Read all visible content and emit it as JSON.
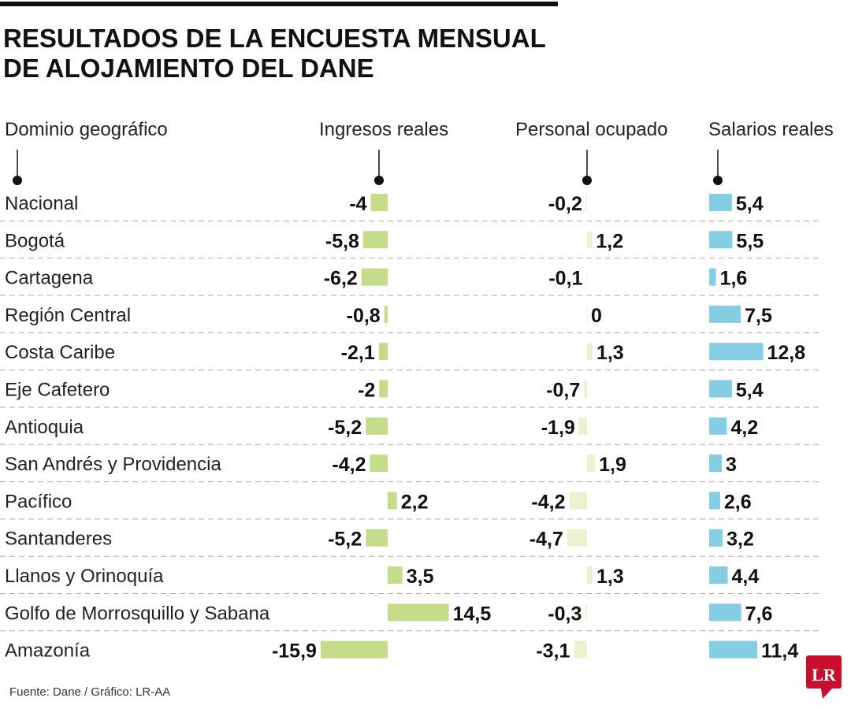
{
  "chart_data": {
    "type": "bar",
    "title": [
      "RESULTADOS DE LA ENCUESTA MENSUAL",
      "DE ALOJAMIENTO DEL DANE"
    ],
    "category_header": "Dominio geográfico",
    "categories": [
      "Nacional",
      "Bogotá",
      "Cartagena",
      "Región Central",
      "Costa Caribe",
      "Eje Cafetero",
      "Antioquia",
      "San Andrés y Providencia",
      "Pacífico",
      "Santanderes",
      "Llanos y Orinoquía",
      "Golfo de Morrosquillo y Sabana",
      "Amazonía"
    ],
    "series": [
      {
        "name": "Ingresos reales",
        "color": "#c5dc8a",
        "values": [
          -4,
          -5.8,
          -6.2,
          -0.8,
          -2.1,
          -2,
          -5.2,
          -4.2,
          2.2,
          -5.2,
          3.5,
          14.5,
          -15.9
        ]
      },
      {
        "name": "Personal ocupado",
        "color": "#ecf2d0",
        "values": [
          -0.2,
          1.2,
          -0.1,
          0,
          1.3,
          -0.7,
          -1.9,
          1.9,
          -4.2,
          -4.7,
          1.3,
          -0.3,
          -3.1
        ]
      },
      {
        "name": "Salarios reales",
        "color": "#85cde3",
        "values": [
          5.4,
          5.5,
          1.6,
          7.5,
          12.8,
          5.4,
          4.2,
          3,
          2.6,
          3.2,
          4.4,
          7.6,
          11.4
        ]
      }
    ],
    "decimal_separator": ",",
    "source": "Fuente: Dane / Gráfico: LR-AA",
    "logo": "LR",
    "logo_color": "#c8102e"
  }
}
